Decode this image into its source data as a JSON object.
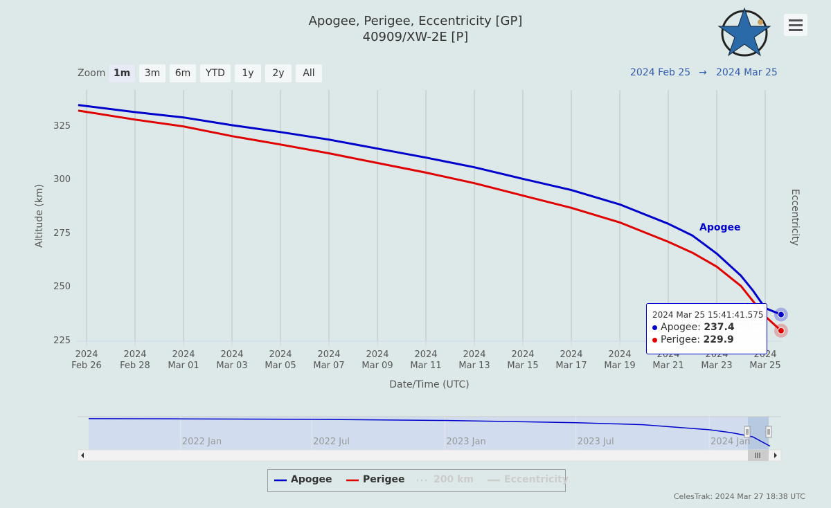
{
  "title": "Apogee, Perigee, Eccentricity [GP]",
  "subtitle": "40909/XW-2E [P]",
  "zoom": {
    "label": "Zoom",
    "buttons": [
      "1m",
      "3m",
      "6m",
      "YTD",
      "1y",
      "2y",
      "All"
    ],
    "selected": 0
  },
  "range": {
    "from": "2024 Feb 25",
    "arrow": "→",
    "to": "2024 Mar 25"
  },
  "chart_data": {
    "type": "line",
    "xlabel": "Date/Time (UTC)",
    "ylabel": "Altitude (km)",
    "y2label": "Eccentricity",
    "x": [
      "2024-02-25T15:41",
      "2024-02-28",
      "2024-03-01",
      "2024-03-03",
      "2024-03-05",
      "2024-03-07",
      "2024-03-09",
      "2024-03-11",
      "2024-03-13",
      "2024-03-15",
      "2024-03-17",
      "2024-03-19",
      "2024-03-21",
      "2024-03-22",
      "2024-03-23",
      "2024-03-24",
      "2024-03-24T12:00",
      "2024-03-25",
      "2024-03-25T15:41:41.575"
    ],
    "series": [
      {
        "name": "Apogee",
        "color": "#0000cc",
        "values": [
          335.0,
          331.7,
          329.2,
          325.6,
          322.4,
          318.9,
          314.7,
          310.5,
          306.0,
          300.6,
          295.4,
          288.7,
          279.7,
          274.2,
          265.8,
          255.5,
          248.5,
          240.4,
          237.4
        ]
      },
      {
        "name": "Perigee",
        "color": "#e00000",
        "values": [
          332.4,
          328.2,
          325.0,
          320.5,
          316.6,
          312.5,
          308.0,
          303.5,
          298.6,
          292.8,
          287.1,
          280.3,
          271.3,
          266.2,
          259.7,
          250.7,
          243.6,
          236.6,
          229.9
        ]
      }
    ],
    "xlim": [
      "2024-02-25T13:43",
      "2024-03-25T17:08"
    ],
    "ylim": [
      225,
      342
    ],
    "xticks": [
      {
        "value": "2024-02-26",
        "label": "2024\nFeb 26"
      },
      {
        "value": "2024-02-28",
        "label": "2024\nFeb 28"
      },
      {
        "value": "2024-03-01",
        "label": "2024\nMar 01"
      },
      {
        "value": "2024-03-03",
        "label": "2024\nMar 03"
      },
      {
        "value": "2024-03-05",
        "label": "2024\nMar 05"
      },
      {
        "value": "2024-03-07",
        "label": "2024\nMar 07"
      },
      {
        "value": "2024-03-09",
        "label": "2024\nMar 09"
      },
      {
        "value": "2024-03-11",
        "label": "2024\nMar 11"
      },
      {
        "value": "2024-03-13",
        "label": "2024\nMar 13"
      },
      {
        "value": "2024-03-15",
        "label": "2024\nMar 15"
      },
      {
        "value": "2024-03-17",
        "label": "2024\nMar 17"
      },
      {
        "value": "2024-03-19",
        "label": "2024\nMar 19"
      },
      {
        "value": "2024-03-21",
        "label": "2024\nMar 21"
      },
      {
        "value": "2024-03-23",
        "label": "2024\nMar 23"
      },
      {
        "value": "2024-03-25",
        "label": "2024\nMar 25"
      }
    ],
    "yticks": [
      225,
      250,
      275,
      300,
      325
    ],
    "grid": "x",
    "tooltip": {
      "title": "2024 Mar 25 15:41:41.575"
    }
  },
  "navigator": {
    "x": [
      "2021-08-27",
      "2022-01-01",
      "2022-07-01",
      "2023-01-01",
      "2023-07-01",
      "2023-10-01",
      "2024-01-01",
      "2024-02-01",
      "2024-03-01",
      "2024-03-25"
    ],
    "values": [
      510,
      508,
      503,
      492,
      470,
      450,
      400,
      370,
      330,
      237.4
    ],
    "xlim": [
      "2021-08-27",
      "2024-03-25"
    ],
    "ylim": [
      200,
      530
    ],
    "xticks": [
      {
        "value": "2022-01-01",
        "label": "2022 Jan"
      },
      {
        "value": "2022-07-01",
        "label": "2022 Jul"
      },
      {
        "value": "2023-01-01",
        "label": "2023 Jan"
      },
      {
        "value": "2023-07-01",
        "label": "2023 Jul"
      },
      {
        "value": "2024-01-01",
        "label": "2024 Jan"
      }
    ]
  },
  "hidden_legend": [
    {
      "name": "200 km"
    },
    {
      "name": "Eccentricity"
    }
  ],
  "footer": "CelesTrak: 2024 Mar 27 18:38 UTC"
}
